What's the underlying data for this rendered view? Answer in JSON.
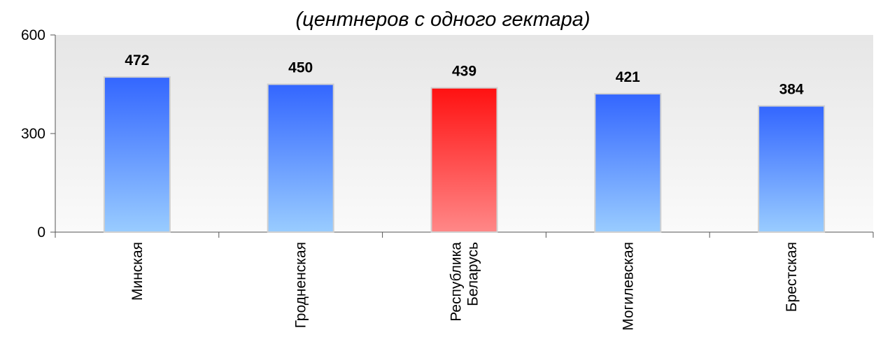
{
  "chart_data": {
    "type": "bar",
    "subtitle": "(центнеров с одного гектара)",
    "categories": [
      [
        "Минская"
      ],
      [
        "Гродненская"
      ],
      [
        "Республика",
        "Беларусь"
      ],
      [
        "Могилевская"
      ],
      [
        "Брестская"
      ]
    ],
    "values": [
      472,
      450,
      439,
      421,
      384
    ],
    "value_labels": [
      "472",
      "450",
      "439",
      "421",
      "384"
    ],
    "highlight_index": 2,
    "ylim": [
      0,
      600
    ],
    "yticks": [
      0,
      300,
      600
    ],
    "ytick_labels": [
      "0",
      "300",
      "600"
    ],
    "colors": {
      "bar_top": "#3366ff",
      "bar_bottom": "#99ccff",
      "highlight_top": "#ff1111",
      "highlight_bottom": "#ff8888",
      "plot_bg_top": "#e6e6e6",
      "plot_bg_bottom": "#fafafa",
      "bar_border": "#d0d0d0"
    },
    "grid": false,
    "legend": "none"
  }
}
